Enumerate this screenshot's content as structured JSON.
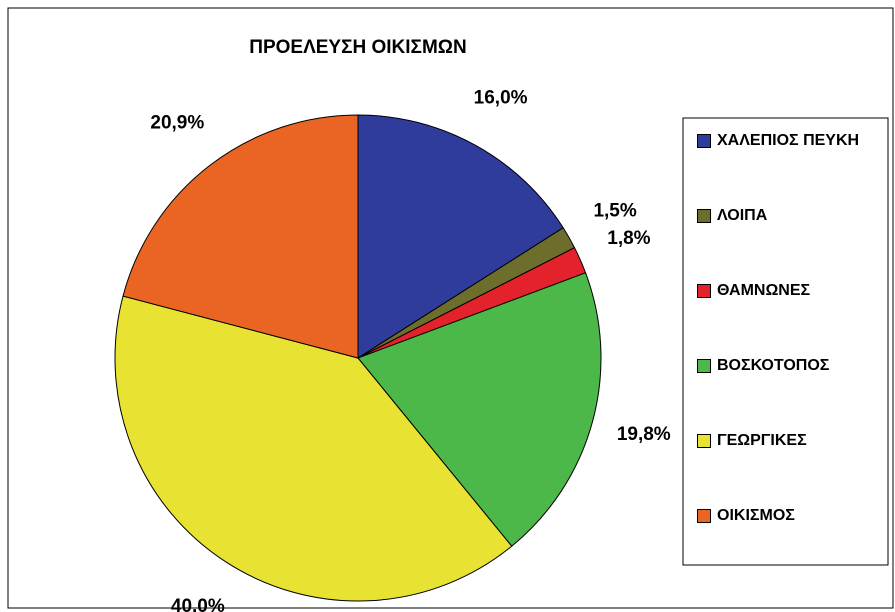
{
  "chart_data": {
    "type": "pie",
    "title": "ΠΡΟΕΛΕΥΣΗ ΟΙΚΙΣΜΩΝ",
    "categories": [
      "ΧΑΛΕΠΙΟΣ ΠΕΥΚΗ",
      "ΛΟΙΠΑ",
      "ΘΑΜΝΩΝΕΣ",
      "ΒΟΣΚΟΤΟΠΟΣ",
      "ΓΕΩΡΓΙΚΕΣ",
      "ΟΙΚΙΣΜΟΣ"
    ],
    "values": [
      16.0,
      1.5,
      1.8,
      19.8,
      40.0,
      20.9
    ],
    "value_labels": [
      "16,0%",
      "1,5%",
      "1,8%",
      "19,8%",
      "40,0%",
      "20,9%"
    ],
    "colors": [
      "#2f3c9c",
      "#6e6e2c",
      "#e3222c",
      "#4cb849",
      "#e8e233",
      "#ea6423"
    ],
    "legend": "right"
  }
}
